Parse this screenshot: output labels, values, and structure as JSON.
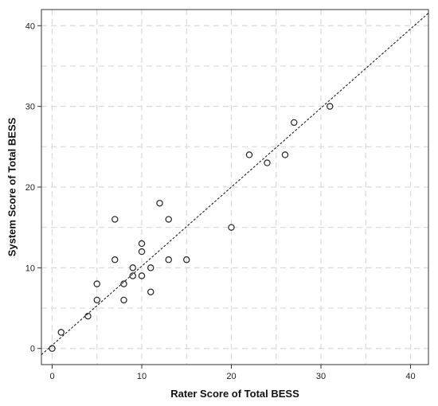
{
  "chart_data": {
    "type": "scatter",
    "title": "",
    "xlabel": "Rater Score of Total BESS",
    "ylabel": "System Score of Total BESS",
    "xlim": [
      -1.2,
      42
    ],
    "ylim": [
      -2,
      42
    ],
    "xticks": [
      0,
      10,
      20,
      30,
      40
    ],
    "yticks": [
      0,
      10,
      20,
      30,
      40
    ],
    "grid": true,
    "marker": "open-circle",
    "points": [
      {
        "x": 0,
        "y": 0
      },
      {
        "x": 1,
        "y": 2
      },
      {
        "x": 4,
        "y": 4
      },
      {
        "x": 5,
        "y": 6
      },
      {
        "x": 5,
        "y": 8
      },
      {
        "x": 7,
        "y": 16
      },
      {
        "x": 7,
        "y": 11
      },
      {
        "x": 8,
        "y": 8
      },
      {
        "x": 8,
        "y": 6
      },
      {
        "x": 9,
        "y": 10
      },
      {
        "x": 9,
        "y": 9
      },
      {
        "x": 10,
        "y": 13
      },
      {
        "x": 10,
        "y": 12
      },
      {
        "x": 10,
        "y": 9
      },
      {
        "x": 11,
        "y": 10
      },
      {
        "x": 11,
        "y": 7
      },
      {
        "x": 12,
        "y": 18
      },
      {
        "x": 13,
        "y": 16
      },
      {
        "x": 13,
        "y": 11
      },
      {
        "x": 15,
        "y": 11
      },
      {
        "x": 20,
        "y": 15
      },
      {
        "x": 22,
        "y": 24
      },
      {
        "x": 24,
        "y": 23
      },
      {
        "x": 26,
        "y": 24
      },
      {
        "x": 27,
        "y": 28
      },
      {
        "x": 31,
        "y": 30
      }
    ],
    "reference_line": {
      "style": "dashed",
      "slope": 0.98,
      "intercept": 0.4
    },
    "colors": {
      "grid": "#d9d9d9",
      "axis": "#333333",
      "marker": "#222222",
      "line": "#222222"
    }
  }
}
